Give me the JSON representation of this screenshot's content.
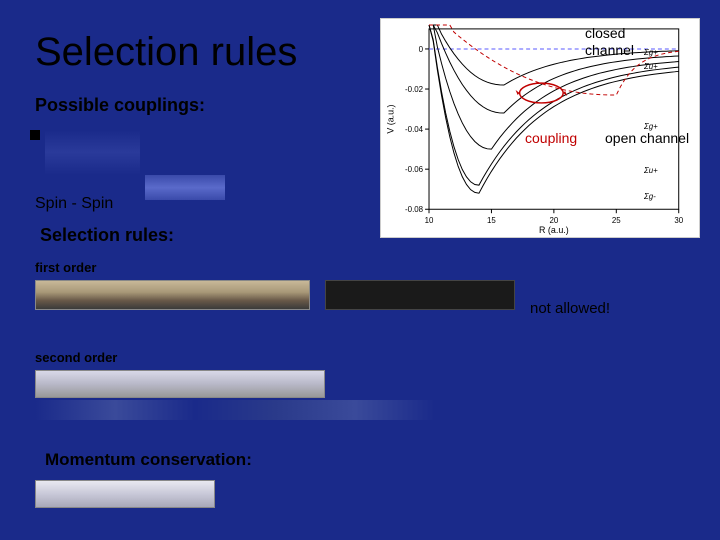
{
  "title": "Selection rules",
  "possible_couplings": "Possible couplings:",
  "spin_spin": "Spin - Spin",
  "selection_rules_label": "Selection rules:",
  "first_order": "first order",
  "not_allowed": "not allowed!",
  "second_order": "second order",
  "momentum_conservation": "Momentum conservation:",
  "closed_channel": "closed\nchannel",
  "coupling": "coupling",
  "open_channel": "open channel",
  "chart": {
    "type": "line",
    "background_color": "#ffffff",
    "xlabel": "R (a.u.)",
    "ylabel": "V (a.u.)",
    "xlim": [
      10,
      30
    ],
    "ylim": [
      -0.08,
      0.01
    ],
    "xticks": [
      10,
      15,
      20,
      25,
      30
    ],
    "yticks": [
      -0.08,
      -0.06,
      -0.04,
      -0.02,
      0
    ],
    "tick_fontsize": 8,
    "label_fontsize": 9,
    "zero_line_color": "#5a5aff",
    "curve_color": "#000000",
    "curve_width": 1,
    "dashed_curve_color": "#c00000",
    "coupling_ellipse_color": "#c00000",
    "state_labels": [
      "Σg+",
      "Σu+",
      "Σg+",
      "Σu+",
      "Σg-"
    ],
    "state_label_color": "#000000",
    "state_label_fontsize": 8,
    "curves": [
      {
        "ymin": -0.018,
        "x_at_min": 16,
        "asymptote": 0.0
      },
      {
        "ymin": -0.032,
        "x_at_min": 16,
        "asymptote": -0.002
      },
      {
        "ymin": -0.05,
        "x_at_min": 15,
        "asymptote": -0.004
      },
      {
        "ymin": -0.068,
        "x_at_min": 14,
        "asymptote": -0.006
      },
      {
        "ymin": -0.072,
        "x_at_min": 14,
        "asymptote": -0.008
      }
    ],
    "dashed_curve": {
      "ymin": -0.023,
      "x_at_min": 25,
      "asymptote": 0.0
    }
  }
}
